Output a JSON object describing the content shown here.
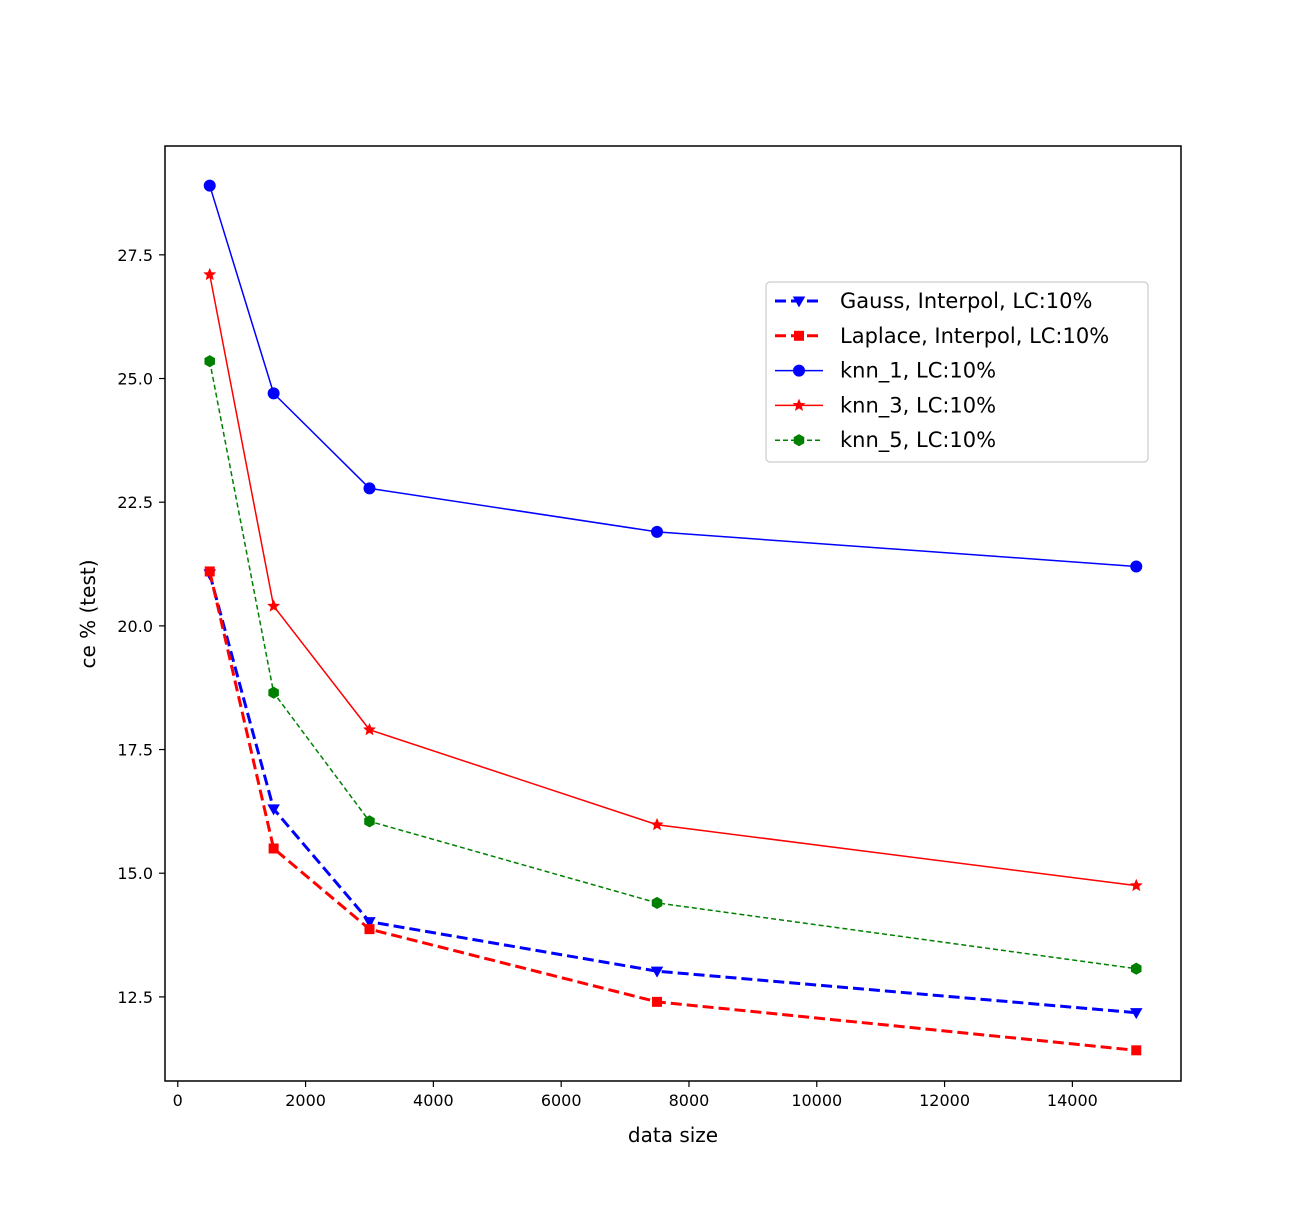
{
  "chart_data": {
    "type": "line",
    "title": "",
    "xlabel": "data size",
    "ylabel": "ce % (test)",
    "xlim": [
      -200,
      15700
    ],
    "ylim": [
      10.8,
      29.7
    ],
    "xticks": [
      0,
      2000,
      4000,
      6000,
      8000,
      10000,
      12000,
      14000
    ],
    "yticks": [
      12.5,
      15.0,
      17.5,
      20.0,
      22.5,
      25.0,
      27.5
    ],
    "ytick_labels": [
      "12.5",
      "15.0",
      "17.5",
      "20.0",
      "22.5",
      "25.0",
      "27.5"
    ],
    "grid": false,
    "legend_position": "upper-right",
    "x": [
      500,
      1500,
      3000,
      7500,
      15000
    ],
    "series": [
      {
        "name": "Gauss, Interpol, LC:10%",
        "values": [
          21.05,
          16.3,
          14.02,
          13.02,
          12.18
        ],
        "color": "#0000ff",
        "linestyle": "dashed",
        "marker": "triangle-down",
        "linewidth": "thick"
      },
      {
        "name": "Laplace, Interpol, LC:10%",
        "values": [
          21.1,
          15.5,
          13.87,
          12.4,
          11.42
        ],
        "color": "#ff0000",
        "linestyle": "dashed",
        "marker": "square",
        "linewidth": "thick"
      },
      {
        "name": "knn_1, LC:10%",
        "values": [
          28.9,
          24.7,
          22.78,
          21.9,
          21.2
        ],
        "color": "#0000ff",
        "linestyle": "solid",
        "marker": "circle",
        "linewidth": "thin"
      },
      {
        "name": "knn_3, LC:10%",
        "values": [
          27.1,
          20.4,
          17.9,
          15.98,
          14.75
        ],
        "color": "#ff0000",
        "linestyle": "solid",
        "marker": "star",
        "linewidth": "thin"
      },
      {
        "name": "knn_5, LC:10%",
        "values": [
          25.35,
          18.65,
          16.05,
          14.4,
          13.07
        ],
        "color": "#008000",
        "linestyle": "dashed",
        "marker": "hexagon",
        "linewidth": "thin"
      }
    ]
  }
}
